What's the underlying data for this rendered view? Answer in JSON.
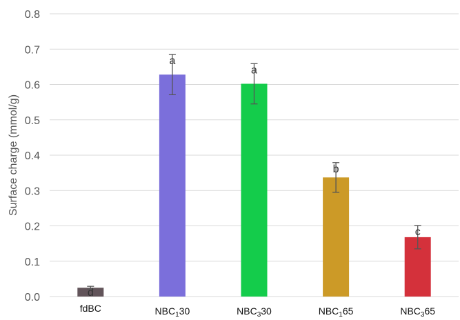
{
  "chart_data": {
    "type": "bar",
    "categories": [
      {
        "label": "fdBC",
        "base": "fdBC",
        "sub": "",
        "tail": ""
      },
      {
        "label": "NBC130",
        "base": "NBC",
        "sub": "1",
        "tail": "30"
      },
      {
        "label": "NBC330",
        "base": "NBC",
        "sub": "3",
        "tail": "30"
      },
      {
        "label": "NBC165",
        "base": "NBC",
        "sub": "1",
        "tail": "65"
      },
      {
        "label": "NBC365",
        "base": "NBC",
        "sub": "3",
        "tail": "65"
      }
    ],
    "values": [
      0.025,
      0.628,
      0.602,
      0.337,
      0.168
    ],
    "errors": [
      0.004,
      0.057,
      0.057,
      0.042,
      0.033
    ],
    "significance": [
      "d",
      "a",
      "a",
      "b",
      "c"
    ],
    "colors": [
      "#62545a",
      "#7b6fdb",
      "#14cc4b",
      "#cc9a27",
      "#d4313b"
    ],
    "xlabel": "",
    "ylabel": "Surface charge (mmol/g)",
    "ylim": [
      0,
      0.8
    ],
    "yticks": [
      "0.0",
      "0.1",
      "0.2",
      "0.3",
      "0.4",
      "0.5",
      "0.6",
      "0.7",
      "0.8"
    ],
    "grid": true
  }
}
